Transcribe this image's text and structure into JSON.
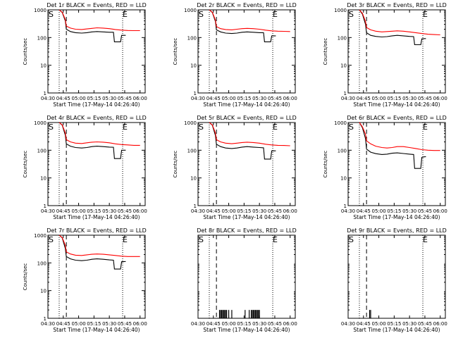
{
  "figure": {
    "background": "#ffffff"
  },
  "chart_data": [
    {
      "type": "line",
      "title": "Det 1r BLACK = Events, RED = LLD",
      "xlabel": "Start Time (17-May-14 04:26:40)",
      "ylabel": "Counts/sec",
      "log_y": true,
      "ylim": [
        1,
        1000
      ],
      "xlim": [
        "04:30",
        "06:05"
      ],
      "xticks": [
        "04:30",
        "04:45",
        "05:00",
        "05:15",
        "05:30",
        "05:45",
        "06:00"
      ],
      "yticks": [
        "1",
        "10",
        "100",
        "1000"
      ],
      "markers": {
        "S": "04:26",
        "E": "05:43"
      },
      "vlines": {
        "dotted": [
          "04:41",
          "05:43"
        ],
        "dashed": "04:48"
      },
      "series": [
        {
          "color": "#000000",
          "x": [
            "04:41",
            "04:44",
            "04:47",
            "04:48",
            "04:52",
            "04:57",
            "05:03",
            "05:08",
            "05:13",
            "05:18",
            "05:24",
            "05:30",
            "05:34",
            "05:35",
            "05:37",
            "05:41",
            "05:42",
            "05:45",
            "05:46"
          ],
          "values": [
            1000,
            800,
            400,
            200,
            165,
            150,
            145,
            150,
            160,
            165,
            160,
            155,
            155,
            70,
            70,
            70,
            120,
            120,
            120
          ]
        },
        {
          "color": "#ff0000",
          "x": [
            "04:41",
            "04:44",
            "04:47",
            "04:48",
            "04:52",
            "04:57",
            "05:03",
            "05:08",
            "05:13",
            "05:18",
            "05:24",
            "05:30",
            "05:36",
            "05:42",
            "05:48",
            "05:54",
            "06:00"
          ],
          "values": [
            1000,
            820,
            450,
            260,
            220,
            200,
            195,
            205,
            215,
            225,
            220,
            210,
            195,
            185,
            180,
            178,
            178
          ]
        }
      ]
    },
    {
      "type": "line",
      "title": "Det 2r BLACK = Events, RED = LLD",
      "xlabel": "Start Time (17-May-14 04:26:40)",
      "ylabel": "Counts/sec",
      "log_y": true,
      "ylim": [
        1,
        1000
      ],
      "xlim": [
        "04:30",
        "06:05"
      ],
      "xticks": [
        "04:30",
        "04:45",
        "05:00",
        "05:15",
        "05:30",
        "05:45",
        "06:00"
      ],
      "yticks": [
        "1",
        "10",
        "100",
        "1000"
      ],
      "markers": {
        "S": "04:26",
        "E": "05:43"
      },
      "vlines": {
        "dotted": [
          "04:41",
          "05:43"
        ],
        "dashed": "04:48"
      },
      "series": [
        {
          "color": "#000000",
          "x": [
            "04:41",
            "04:44",
            "04:47",
            "04:48",
            "04:52",
            "04:57",
            "05:03",
            "05:08",
            "05:13",
            "05:18",
            "05:24",
            "05:30",
            "05:34",
            "05:35",
            "05:37",
            "05:41",
            "05:42",
            "05:45",
            "05:46"
          ],
          "values": [
            1000,
            800,
            380,
            190,
            160,
            145,
            140,
            145,
            155,
            160,
            155,
            150,
            150,
            70,
            70,
            70,
            115,
            115,
            115
          ]
        },
        {
          "color": "#ff0000",
          "x": [
            "04:41",
            "04:44",
            "04:47",
            "04:48",
            "04:52",
            "04:57",
            "05:03",
            "05:08",
            "05:13",
            "05:18",
            "05:24",
            "05:30",
            "05:36",
            "05:42",
            "05:48",
            "05:54",
            "06:00"
          ],
          "values": [
            1000,
            820,
            430,
            250,
            210,
            195,
            190,
            200,
            210,
            215,
            210,
            200,
            185,
            175,
            170,
            168,
            165
          ]
        }
      ]
    },
    {
      "type": "line",
      "title": "Det 3r BLACK = Events, RED = LLD",
      "xlabel": "Start Time (17-May-14 04:26:40)",
      "ylabel": "Counts/sec",
      "log_y": true,
      "ylim": [
        1,
        1000
      ],
      "xlim": [
        "04:30",
        "06:05"
      ],
      "xticks": [
        "04:30",
        "04:45",
        "05:00",
        "05:15",
        "05:30",
        "05:45",
        "06:00"
      ],
      "yticks": [
        "1",
        "10",
        "100",
        "1000"
      ],
      "markers": {
        "S": "04:26",
        "E": "05:43"
      },
      "vlines": {
        "dotted": [
          "04:41",
          "05:43"
        ],
        "dashed": "04:48"
      },
      "series": [
        {
          "color": "#000000",
          "x": [
            "04:41",
            "04:44",
            "04:47",
            "04:48",
            "04:52",
            "04:57",
            "05:03",
            "05:08",
            "05:13",
            "05:18",
            "05:24",
            "05:30",
            "05:34",
            "05:35",
            "05:37",
            "05:41",
            "05:42",
            "05:45",
            "05:46"
          ],
          "values": [
            1000,
            700,
            300,
            150,
            120,
            110,
            105,
            108,
            115,
            120,
            115,
            110,
            108,
            55,
            55,
            55,
            90,
            92,
            92
          ]
        },
        {
          "color": "#ff0000",
          "x": [
            "04:41",
            "04:44",
            "04:47",
            "04:48",
            "04:52",
            "04:57",
            "05:03",
            "05:08",
            "05:13",
            "05:18",
            "05:24",
            "05:30",
            "05:36",
            "05:42",
            "05:48",
            "05:54",
            "06:00"
          ],
          "values": [
            1000,
            750,
            380,
            230,
            190,
            170,
            160,
            165,
            170,
            175,
            170,
            160,
            150,
            140,
            132,
            128,
            125
          ]
        }
      ]
    },
    {
      "type": "line",
      "title": "Det 4r BLACK = Events, RED = LLD",
      "xlabel": "Start Time (17-May-14 04:26:40)",
      "ylabel": "Counts/sec",
      "log_y": true,
      "ylim": [
        1,
        1000
      ],
      "xlim": [
        "04:30",
        "06:05"
      ],
      "xticks": [
        "04:30",
        "04:45",
        "05:00",
        "05:15",
        "05:30",
        "05:45",
        "06:00"
      ],
      "yticks": [
        "1",
        "10",
        "100",
        "1000"
      ],
      "markers": {
        "S": "04:26",
        "E": "05:43"
      },
      "vlines": {
        "dotted": [
          "04:41",
          "05:43"
        ],
        "dashed": "04:48"
      },
      "series": [
        {
          "color": "#000000",
          "x": [
            "04:41",
            "04:44",
            "04:47",
            "04:48",
            "04:52",
            "04:57",
            "05:03",
            "05:08",
            "05:13",
            "05:18",
            "05:24",
            "05:30",
            "05:34",
            "05:35",
            "05:37",
            "05:41",
            "05:42",
            "05:45",
            "05:46"
          ],
          "values": [
            1000,
            800,
            350,
            170,
            140,
            125,
            120,
            125,
            135,
            140,
            135,
            130,
            128,
            50,
            50,
            50,
            100,
            100,
            100
          ]
        },
        {
          "color": "#ff0000",
          "x": [
            "04:41",
            "04:44",
            "04:47",
            "04:48",
            "04:52",
            "04:57",
            "05:03",
            "05:08",
            "05:13",
            "05:18",
            "05:24",
            "05:30",
            "05:36",
            "05:42",
            "05:48",
            "05:54",
            "06:00"
          ],
          "values": [
            1000,
            820,
            420,
            240,
            200,
            180,
            175,
            185,
            195,
            200,
            195,
            185,
            170,
            160,
            155,
            150,
            150
          ]
        }
      ]
    },
    {
      "type": "line",
      "title": "Det 5r BLACK = Events, RED = LLD",
      "xlabel": "Start Time (17-May-14 04:26:40)",
      "ylabel": "Counts/sec",
      "log_y": true,
      "ylim": [
        1,
        1000
      ],
      "xlim": [
        "04:30",
        "06:05"
      ],
      "xticks": [
        "04:30",
        "04:45",
        "05:00",
        "05:15",
        "05:30",
        "05:45",
        "06:00"
      ],
      "yticks": [
        "1",
        "10",
        "100",
        "1000"
      ],
      "markers": {
        "S": "04:26",
        "E": "05:43"
      },
      "vlines": {
        "dotted": [
          "04:41",
          "05:43"
        ],
        "dashed": "04:48"
      },
      "series": [
        {
          "color": "#000000",
          "x": [
            "04:41",
            "04:44",
            "04:47",
            "04:48",
            "04:52",
            "04:57",
            "05:03",
            "05:08",
            "05:13",
            "05:18",
            "05:24",
            "05:30",
            "05:34",
            "05:35",
            "05:37",
            "05:41",
            "05:42",
            "05:45",
            "05:46"
          ],
          "values": [
            1000,
            800,
            340,
            165,
            135,
            120,
            115,
            120,
            130,
            135,
            130,
            125,
            122,
            48,
            48,
            48,
            95,
            95,
            95
          ]
        },
        {
          "color": "#ff0000",
          "x": [
            "04:41",
            "04:44",
            "04:47",
            "04:48",
            "04:52",
            "04:57",
            "05:03",
            "05:08",
            "05:13",
            "05:18",
            "05:24",
            "05:30",
            "05:36",
            "05:42",
            "05:48",
            "05:54",
            "06:00"
          ],
          "values": [
            1000,
            820,
            420,
            240,
            200,
            180,
            172,
            180,
            190,
            195,
            190,
            180,
            165,
            155,
            150,
            148,
            145
          ]
        }
      ]
    },
    {
      "type": "line",
      "title": "Det 6r BLACK = Events, RED = LLD",
      "xlabel": "Start Time (17-May-14 04:26:40)",
      "ylabel": "Counts/sec",
      "log_y": true,
      "ylim": [
        1,
        1000
      ],
      "xlim": [
        "04:30",
        "06:05"
      ],
      "xticks": [
        "04:30",
        "04:45",
        "05:00",
        "05:15",
        "05:30",
        "05:45",
        "06:00"
      ],
      "yticks": [
        "1",
        "10",
        "100",
        "1000"
      ],
      "markers": {
        "S": "04:26",
        "E": "05:43"
      },
      "vlines": {
        "dotted": [
          "04:41",
          "05:43"
        ],
        "dashed": "04:48"
      },
      "series": [
        {
          "color": "#000000",
          "x": [
            "04:41",
            "04:44",
            "04:47",
            "04:48",
            "04:52",
            "04:57",
            "05:03",
            "05:08",
            "05:13",
            "05:18",
            "05:24",
            "05:30",
            "05:34",
            "05:35",
            "05:37",
            "05:41",
            "05:42",
            "05:45",
            "05:46"
          ],
          "values": [
            1000,
            650,
            260,
            110,
            85,
            75,
            70,
            72,
            78,
            80,
            76,
            72,
            70,
            22,
            22,
            22,
            55,
            58,
            58
          ]
        },
        {
          "color": "#ff0000",
          "x": [
            "04:41",
            "04:44",
            "04:47",
            "04:48",
            "04:52",
            "04:57",
            "05:03",
            "05:08",
            "05:13",
            "05:18",
            "05:24",
            "05:30",
            "05:36",
            "05:42",
            "05:48",
            "05:54",
            "06:00"
          ],
          "values": [
            1000,
            700,
            380,
            220,
            170,
            140,
            125,
            120,
            125,
            135,
            135,
            125,
            115,
            105,
            100,
            98,
            98
          ]
        }
      ]
    },
    {
      "type": "line",
      "title": "Det 7r BLACK = Events, RED = LLD",
      "xlabel": "Start Time (17-May-14 04:26:40)",
      "ylabel": "Counts/sec",
      "log_y": true,
      "ylim": [
        1,
        1000
      ],
      "xlim": [
        "04:30",
        "06:05"
      ],
      "xticks": [
        "04:30",
        "04:45",
        "05:00",
        "05:15",
        "05:30",
        "05:45",
        "06:00"
      ],
      "yticks": [
        "1",
        "10",
        "100",
        "1000"
      ],
      "markers": {
        "S": "04:26",
        "E": "05:43"
      },
      "vlines": {
        "dotted": [
          "04:41",
          "05:43"
        ],
        "dashed": "04:48"
      },
      "series": [
        {
          "color": "#000000",
          "x": [
            "04:41",
            "04:44",
            "04:47",
            "04:48",
            "04:52",
            "04:57",
            "05:03",
            "05:08",
            "05:13",
            "05:18",
            "05:24",
            "05:30",
            "05:34",
            "05:35",
            "05:37",
            "05:41",
            "05:42",
            "05:45",
            "05:46"
          ],
          "values": [
            1000,
            800,
            330,
            170,
            140,
            125,
            120,
            125,
            135,
            140,
            135,
            128,
            125,
            60,
            60,
            60,
            110,
            112,
            112
          ]
        },
        {
          "color": "#ff0000",
          "x": [
            "04:41",
            "04:44",
            "04:47",
            "04:48",
            "04:52",
            "04:57",
            "05:03",
            "05:08",
            "05:13",
            "05:18",
            "05:24",
            "05:30",
            "05:36",
            "05:42",
            "05:48",
            "05:54",
            "06:00"
          ],
          "values": [
            1000,
            820,
            430,
            250,
            210,
            190,
            185,
            195,
            205,
            210,
            205,
            195,
            185,
            175,
            170,
            170,
            170
          ]
        }
      ]
    },
    {
      "type": "line",
      "title": "Det 8r BLACK = Events, RED = LLD",
      "xlabel": "Start Time (17-May-14 04:26:40)",
      "ylabel": "",
      "log_y": true,
      "ylim": [
        1,
        1000
      ],
      "xlim": [
        "04:30",
        "06:05"
      ],
      "xticks": [
        "04:30",
        "04:45",
        "05:00",
        "05:15",
        "05:30",
        "05:45",
        "06:00"
      ],
      "yticks": [],
      "markers": {
        "S": "04:26",
        "E": "05:43"
      },
      "vlines": {
        "dotted": [
          "04:41",
          "05:43"
        ],
        "dashed": "04:48"
      },
      "series": [
        {
          "color": "#000000",
          "type": "spikes",
          "x": [
            "04:51",
            "04:52",
            "04:53",
            "04:54",
            "04:55",
            "04:56",
            "04:57",
            "04:58",
            "05:00",
            "05:03",
            "05:16",
            "05:20",
            "05:22",
            "05:23",
            "05:24",
            "05:25",
            "05:26",
            "05:27",
            "05:28",
            "05:29",
            "05:30"
          ],
          "values": [
            2,
            2,
            2,
            2,
            2,
            2,
            2,
            2,
            2,
            2,
            2,
            2,
            2,
            2,
            2,
            2,
            2,
            2,
            2,
            2,
            2
          ]
        }
      ]
    },
    {
      "type": "line",
      "title": "Det 9r BLACK = Events, RED = LLD",
      "xlabel": "Start Time (17-May-14 04:26:40)",
      "ylabel": "",
      "log_y": true,
      "ylim": [
        1,
        1000
      ],
      "xlim": [
        "04:30",
        "06:05"
      ],
      "xticks": [
        "04:30",
        "04:45",
        "05:00",
        "05:15",
        "05:30",
        "05:45",
        "06:00"
      ],
      "yticks": [],
      "markers": {
        "S": "04:26",
        "E": "05:43"
      },
      "vlines": {
        "dotted": [
          "04:41",
          "05:43"
        ],
        "dashed": "04:48"
      },
      "series": [
        {
          "color": "#000000",
          "type": "spikes",
          "x": [
            "04:51",
            "04:52"
          ],
          "values": [
            2,
            2
          ]
        }
      ]
    }
  ]
}
